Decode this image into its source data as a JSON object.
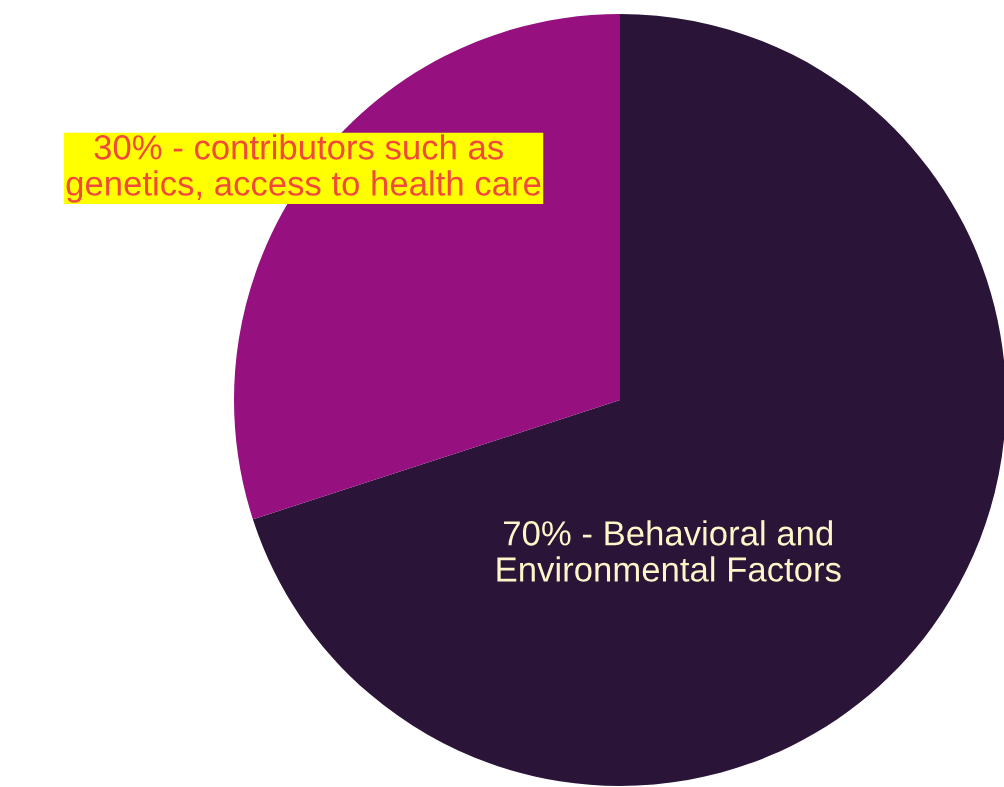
{
  "chart_data": {
    "type": "pie",
    "categories": [
      "70% - Behavioral and\nEnvironmental Factors",
      "30% - contributors such as \ngenetics, access to health care"
    ],
    "values": [
      70,
      30
    ],
    "colors": [
      "#2a1538",
      "#961080"
    ]
  }
}
